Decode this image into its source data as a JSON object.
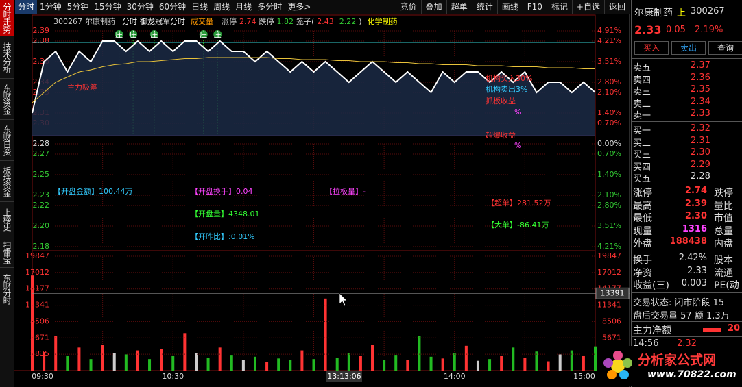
{
  "toolbar": {
    "periods": [
      "分时",
      "1分钟",
      "5分钟",
      "15分钟",
      "30分钟",
      "60分钟",
      "日线",
      "周线",
      "月线",
      "多分时",
      "更多>"
    ],
    "tools": [
      "竞价",
      "叠加",
      "超单",
      "统计",
      "画线",
      "F10",
      "标记",
      "+自选",
      "返回"
    ]
  },
  "side_tabs": [
    "分时走势",
    "技术分析",
    "东财资金",
    "东财日资",
    "板块资金",
    "上榜史",
    "扫雷宝",
    "东财分时"
  ],
  "chart_header": {
    "code": "300267",
    "name": "尔康制药",
    "mode": "分时",
    "indicator": "御龙冠军分时",
    "volume": "成交量",
    "limit_up_label": "涨停",
    "limit_up": "2.74",
    "limit_down_label": "跌停",
    "limit_down": "1.82",
    "cage_open": "笼子(",
    "cage_high": "2.43",
    "cage_low": "2.22",
    "cage_close": ")",
    "sector": "化学制药"
  },
  "chart_data": {
    "type": "line",
    "categories": [
      "09:30",
      null,
      null,
      null,
      null,
      null,
      null,
      null,
      null,
      null,
      null,
      null,
      "10:30",
      null,
      null,
      null,
      null,
      null,
      null,
      null,
      null,
      null,
      null,
      null,
      null,
      null,
      null,
      null,
      null,
      null,
      null,
      null,
      null,
      null,
      null,
      null,
      "14:00",
      null,
      null,
      null,
      null,
      null,
      null,
      null,
      null,
      null,
      null,
      null,
      "15:00"
    ],
    "series": [
      {
        "name": "分时",
        "color": "#ffffff",
        "values": [
          2.31,
          2.36,
          2.37,
          2.35,
          2.37,
          2.36,
          2.38,
          2.38,
          2.37,
          2.38,
          2.37,
          2.38,
          2.37,
          2.38,
          2.38,
          2.37,
          2.38,
          2.37,
          2.37,
          2.36,
          2.37,
          2.36,
          2.35,
          2.36,
          2.35,
          2.36,
          2.35,
          2.34,
          2.35,
          2.36,
          2.35,
          2.34,
          2.35,
          2.34,
          2.33,
          2.35,
          2.34,
          2.35,
          2.35,
          2.34,
          2.35,
          2.34,
          2.35,
          2.33,
          2.34,
          2.34,
          2.33,
          2.34,
          2.33
        ]
      },
      {
        "name": "均价",
        "color": "#e8c23a",
        "values": [
          2.32,
          2.33,
          2.34,
          2.345,
          2.35,
          2.352,
          2.355,
          2.357,
          2.358,
          2.36,
          2.36,
          2.361,
          2.362,
          2.363,
          2.363,
          2.364,
          2.364,
          2.364,
          2.364,
          2.364,
          2.364,
          2.363,
          2.363,
          2.362,
          2.362,
          2.362,
          2.361,
          2.361,
          2.36,
          2.36,
          2.36,
          2.359,
          2.359,
          2.358,
          2.358,
          2.357,
          2.357,
          2.357,
          2.356,
          2.356,
          2.356,
          2.355,
          2.355,
          2.355,
          2.354,
          2.354,
          2.354,
          2.353,
          2.353
        ]
      }
    ],
    "ylim": [
      2.176,
      2.396
    ],
    "yticks": [
      2.39,
      2.38,
      2.36,
      2.34,
      2.33,
      2.31,
      {
        "value": 2.3,
        "label": "2.30"
      },
      2.28,
      2.27,
      2.25,
      2.23,
      2.22,
      {
        "value": 2.2,
        "label": "2.20"
      },
      2.18
    ],
    "y2ticks": [
      {
        "value": 4.91,
        "label": "4.91%"
      },
      {
        "value": 4.21,
        "label": "4.21%"
      },
      {
        "value": 3.51,
        "label": "3.51%"
      },
      {
        "value": 2.8,
        "label": "2.80%"
      },
      {
        "value": 2.1,
        "label": "2.10%"
      },
      {
        "value": 1.4,
        "label": "1.40%"
      },
      {
        "value": 0.7,
        "label": "0.70%"
      },
      {
        "value": 0,
        "label": "0.00%"
      },
      {
        "value": -0.7,
        "label": "0.70%"
      },
      {
        "value": -1.4,
        "label": "1.40%"
      },
      {
        "value": -2.1,
        "label": "2.10%"
      },
      {
        "value": -2.8,
        "label": "2.80%"
      },
      {
        "value": -3.51,
        "label": "3.51%"
      },
      {
        "value": -4.21,
        "label": "4.21%"
      }
    ],
    "markers": [
      "庄",
      "庄",
      "庄",
      "庄",
      "庄"
    ],
    "annotations": [
      {
        "text": "【开盘金额】100.44万",
        "color": "#33ccff"
      },
      {
        "text": "【开盘换手】0.04",
        "color": "#ff44ff"
      },
      {
        "text": "【拉板量】-",
        "color": "#ff44ff"
      },
      {
        "text": "【开盘量】4348.01",
        "color": "#33ff33"
      },
      {
        "text": "【超单】281.52万",
        "color": "#ff3333"
      },
      {
        "text": "【开昨比】:0.01%",
        "color": "#33ccff"
      },
      {
        "text": "【大单】-86.41万",
        "color": "#33ff33"
      },
      {
        "text": "主力吸筹",
        "color": "#ff3333"
      },
      {
        "text": "机构买入30%",
        "color": "#ff3333"
      },
      {
        "text": "机构卖出3%",
        "color": "#33ccff"
      },
      {
        "text": "抓板收益",
        "color": "#ff3333"
      },
      {
        "text": "%",
        "color": "#ff44ff"
      },
      {
        "text": "超爆收益",
        "color": "#ff3333"
      },
      {
        "text": "%",
        "color": "#ff44ff"
      }
    ],
    "volume": {
      "values": [
        16500,
        3200,
        6000,
        2500,
        4000,
        2000,
        4500,
        3000,
        2800,
        3500,
        2000,
        3800,
        2500,
        6500,
        3000,
        2200,
        4000,
        2600,
        1800,
        2400,
        1500,
        2100,
        1800,
        3500,
        2000,
        12500,
        2200,
        3000,
        2500,
        4500,
        1900,
        2600,
        1800,
        6000,
        2400,
        2100,
        3000,
        4300,
        1700,
        2000,
        2500,
        4000,
        2200,
        3300,
        1600,
        2800,
        3500,
        2500,
        4200
      ],
      "ylim": [
        0,
        20800
      ],
      "yticks": [
        19847,
        17012,
        14177,
        11341,
        8506,
        5671,
        2835
      ]
    },
    "crosshair": {
      "value": 13391,
      "time": "13:13:06"
    }
  },
  "right_panel": {
    "name": "尔康制药",
    "flag": "上",
    "code": "300267",
    "price": "2.33",
    "change": "0.05",
    "pct": "2.19%",
    "buttons": [
      "买入",
      "卖出",
      "查询"
    ],
    "asks": [
      [
        "卖五",
        "2.37"
      ],
      [
        "卖四",
        "2.36"
      ],
      [
        "卖三",
        "2.35"
      ],
      [
        "卖二",
        "2.34"
      ],
      [
        "卖一",
        "2.33"
      ]
    ],
    "bids": [
      [
        "买一",
        "2.32"
      ],
      [
        "买二",
        "2.31"
      ],
      [
        "买三",
        "2.30"
      ],
      [
        "买四",
        "2.29"
      ],
      [
        "买五",
        "2.28"
      ]
    ],
    "stats": [
      [
        "涨停",
        "2.74",
        "跌停"
      ],
      [
        "最高",
        "2.39",
        "量比"
      ],
      [
        "最低",
        "2.30",
        "市值"
      ],
      [
        "现量",
        "1316",
        "总量"
      ],
      [
        "外盘",
        "188438",
        "内盘"
      ]
    ],
    "stats2": [
      [
        "换手",
        "2.42%",
        "股本"
      ],
      [
        "净资",
        "2.33",
        "流通"
      ],
      [
        "收益(三)",
        "0.003",
        "PE(动"
      ]
    ],
    "status": [
      "交易状态: 闭市阶段 15",
      "盘后交易量 57 额 1.3万"
    ],
    "main_net": "主力净额",
    "main_net_value": "20",
    "tick": [
      "14:56",
      "2.32"
    ]
  },
  "logo": {
    "name": "分析家公式网",
    "url": "www.70822.com"
  }
}
